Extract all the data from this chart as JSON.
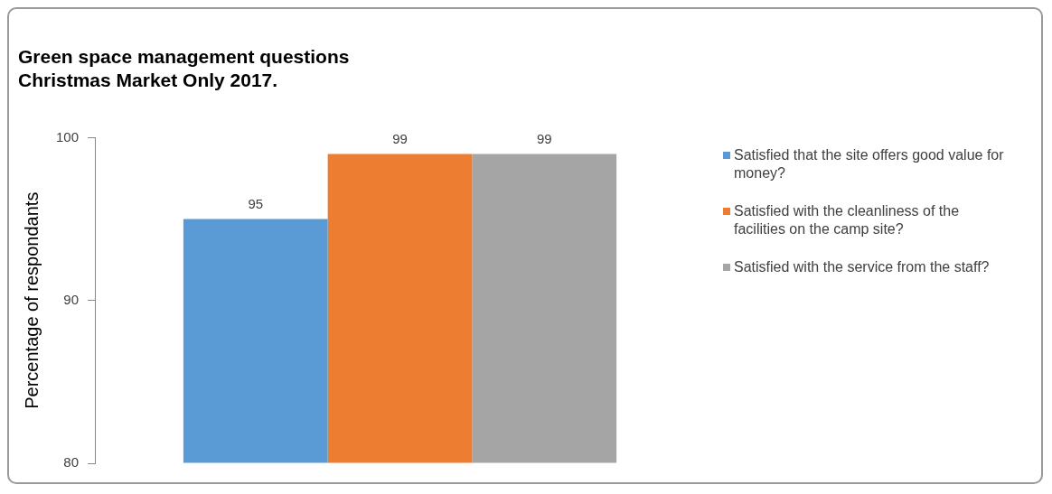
{
  "chart_data": {
    "type": "bar",
    "title": [
      "Green space management questions",
      "Christmas Market Only 2017."
    ],
    "ylabel": "Percentage of respondants",
    "categories": [
      null
    ],
    "series": [
      {
        "name": "Satisfied that the site offers good value for money?",
        "color": "#5b9bd5",
        "values": [
          95
        ]
      },
      {
        "name": "Satisfied with the cleanliness of the facilities on the camp site?",
        "color": "#ed7d31",
        "values": [
          99
        ]
      },
      {
        "name": "Satisfied with the service from the staff?",
        "color": "#a5a5a5",
        "values": [
          99
        ]
      }
    ],
    "ylim": [
      80,
      100
    ],
    "yticks": [
      80,
      90,
      100
    ],
    "grid": false,
    "legend": "right",
    "data_labels": true
  }
}
